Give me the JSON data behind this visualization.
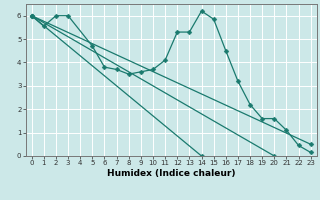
{
  "xlabel": "Humidex (Indice chaleur)",
  "bg_color": "#cce8e8",
  "grid_color": "#ffffff",
  "line_color": "#1a7a6e",
  "xlim": [
    -0.5,
    23.5
  ],
  "ylim": [
    0,
    6.5
  ],
  "xticks": [
    0,
    1,
    2,
    3,
    4,
    5,
    6,
    7,
    8,
    9,
    10,
    11,
    12,
    13,
    14,
    15,
    16,
    17,
    18,
    19,
    20,
    21,
    22,
    23
  ],
  "yticks": [
    0,
    1,
    2,
    3,
    4,
    5,
    6
  ],
  "line1_x": [
    0,
    14
  ],
  "line1_y": [
    6.0,
    0.0
  ],
  "line2_x": [
    0,
    20
  ],
  "line2_y": [
    6.0,
    0.0
  ],
  "line3_x": [
    0,
    23
  ],
  "line3_y": [
    6.0,
    0.5
  ],
  "curve_x": [
    0,
    1,
    2,
    3,
    5,
    6,
    7,
    8,
    9,
    10,
    11,
    12,
    13,
    14,
    15,
    16,
    17,
    18,
    19,
    20,
    21,
    22,
    23
  ],
  "curve_y": [
    6.0,
    5.55,
    6.0,
    6.0,
    4.7,
    3.8,
    3.7,
    3.5,
    3.6,
    3.7,
    4.1,
    5.3,
    5.3,
    6.2,
    5.85,
    4.5,
    3.2,
    2.2,
    1.6,
    1.6,
    1.1,
    0.45,
    0.15
  ],
  "xlabel_fontsize": 6.5,
  "tick_fontsize": 5.0
}
